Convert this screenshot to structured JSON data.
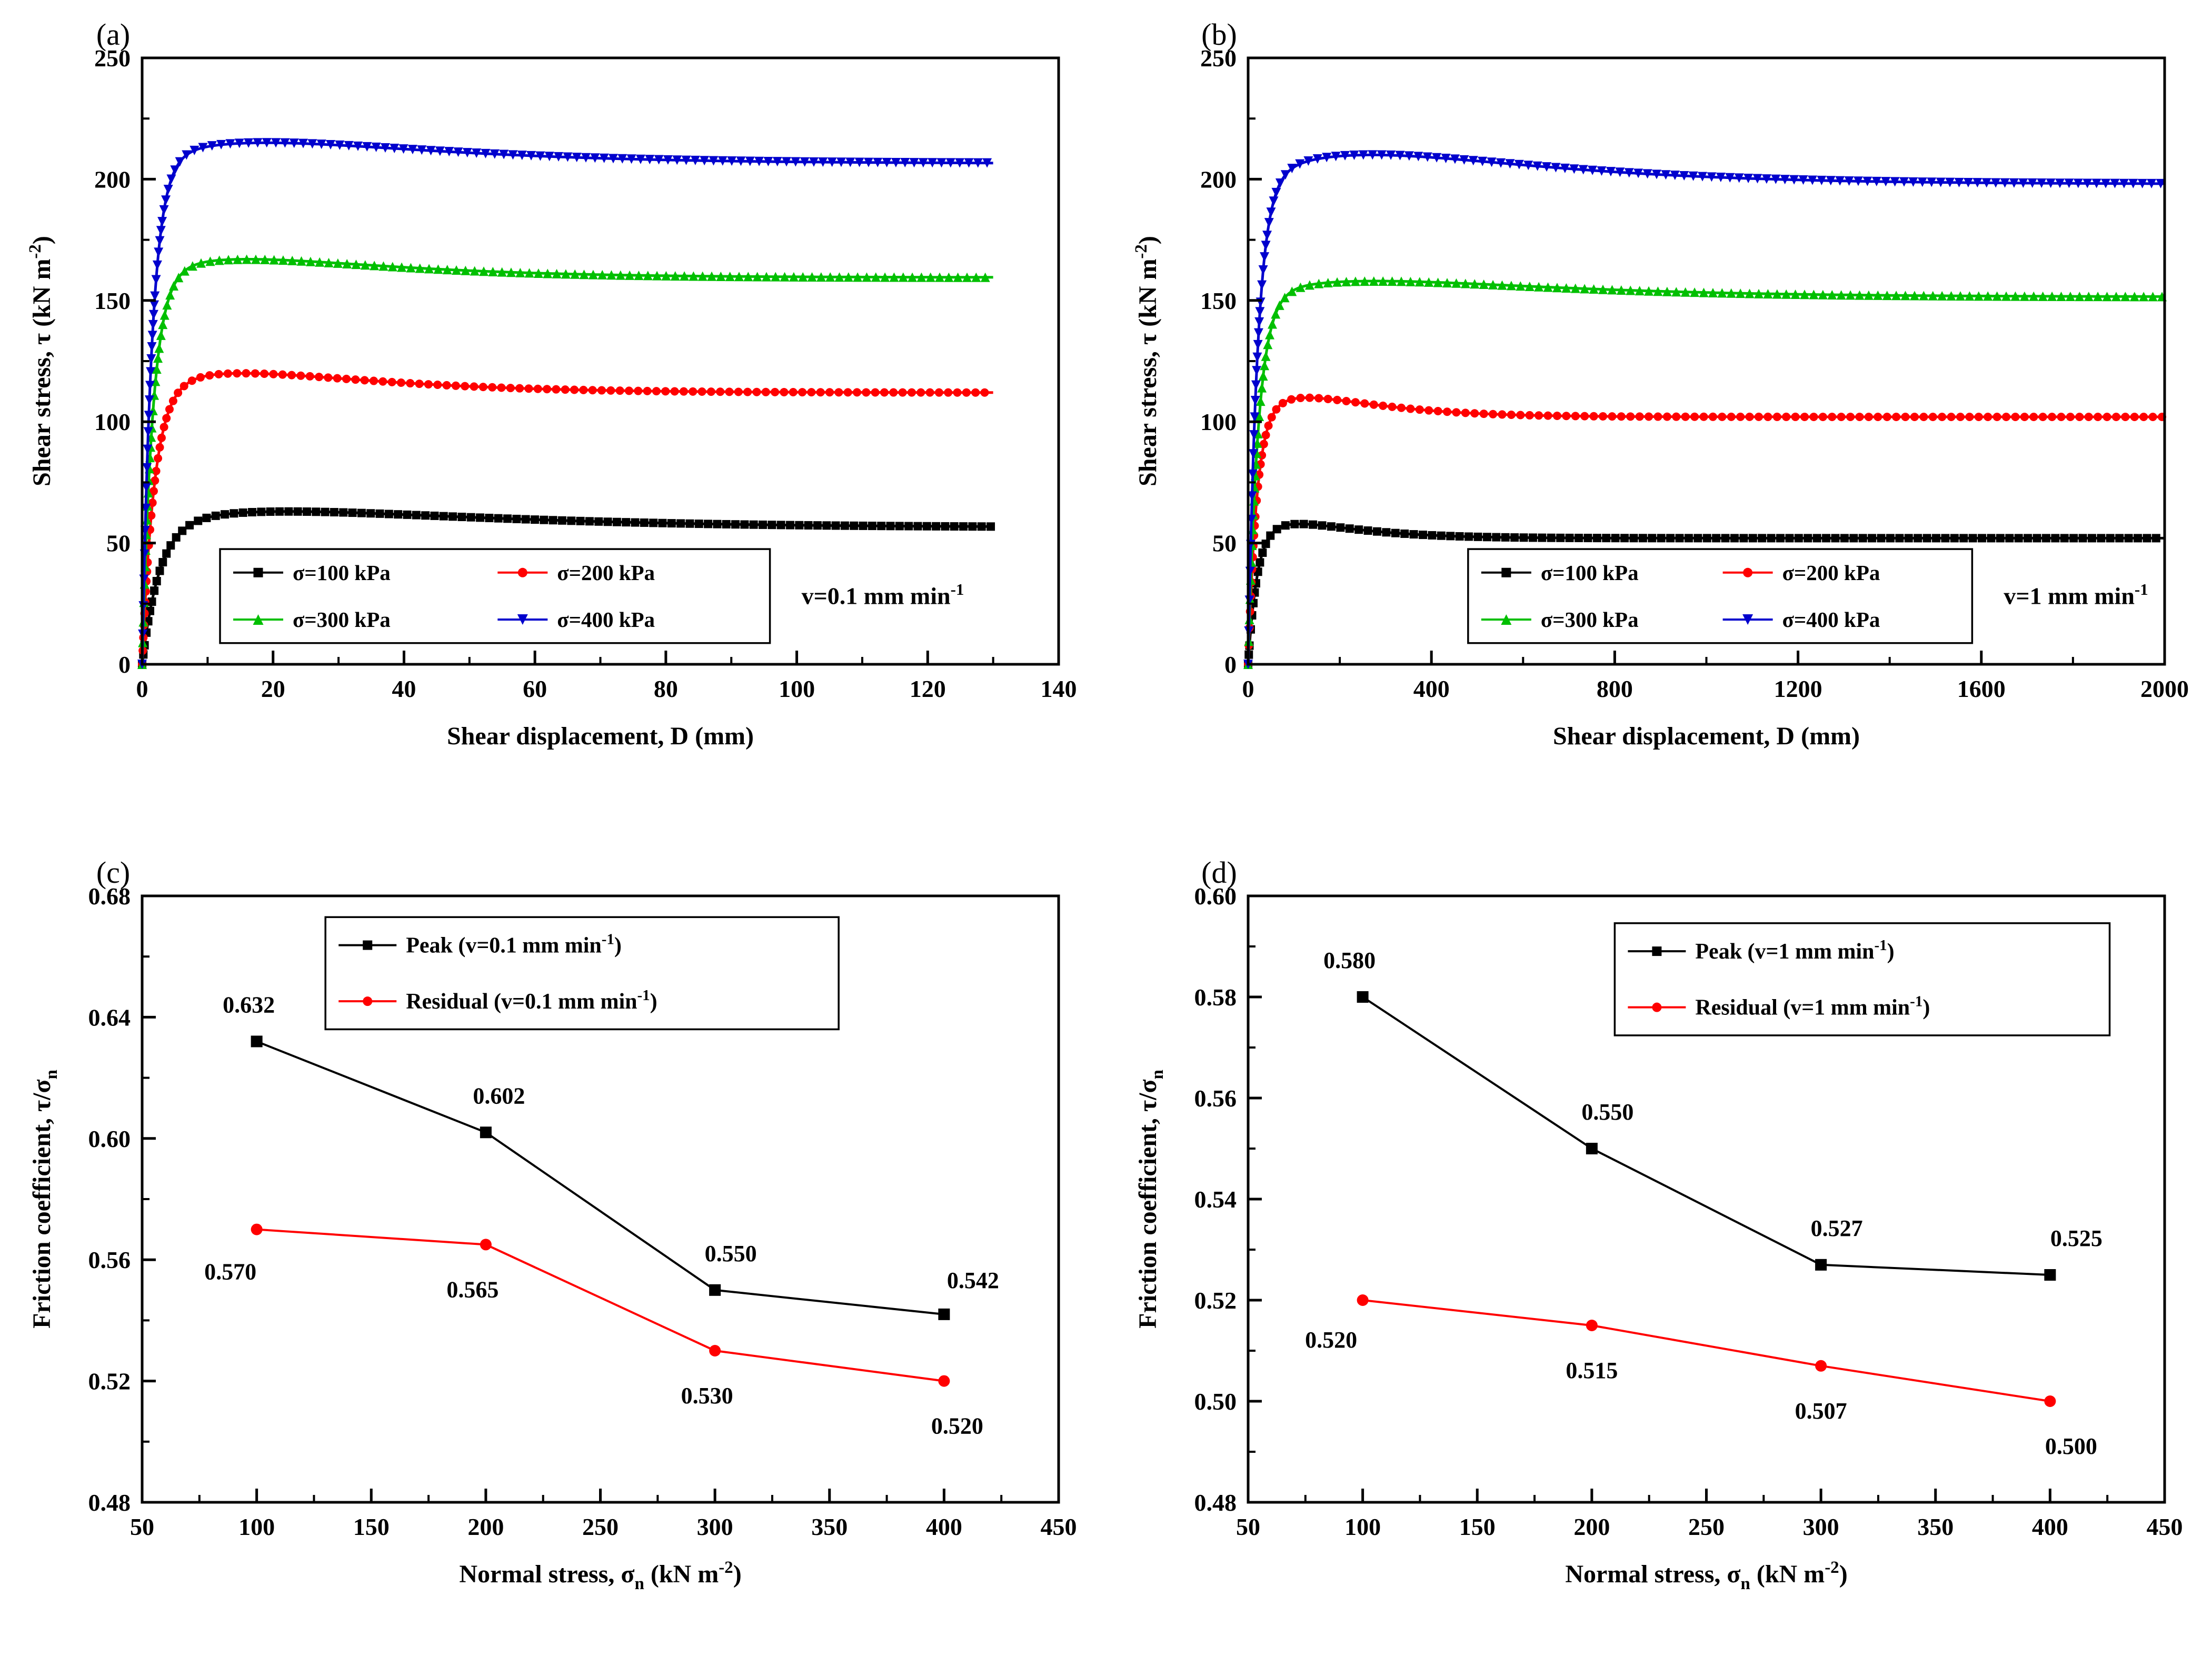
{
  "figure": {
    "background": "#ffffff"
  },
  "colors": {
    "black": "#000000",
    "red": "#ff0000",
    "green": "#00bf00",
    "blue": "#0000cd"
  },
  "chart_data": [
    {
      "id": "a",
      "type": "line",
      "panel_label": "(a)",
      "xlabel": [
        {
          "text": "Shear displacement, D (mm)"
        }
      ],
      "ylabel": [
        {
          "text": "Shear stress, τ (kN m"
        },
        {
          "text": "-2",
          "sup": true
        },
        {
          "text": ")"
        }
      ],
      "xlim": [
        0,
        140
      ],
      "xticks": [
        0,
        20,
        40,
        60,
        80,
        100,
        120,
        140
      ],
      "xtick_labels": [
        "0",
        "20",
        "40",
        "60",
        "80",
        "100",
        "120",
        "140"
      ],
      "x_minor_step": 10,
      "ylim": [
        0,
        250
      ],
      "yticks": [
        0,
        50,
        100,
        150,
        200,
        250
      ],
      "ytick_labels": [
        "0",
        "50",
        "100",
        "150",
        "200",
        "250"
      ],
      "y_minor_step": 25,
      "annotation": [
        {
          "text": "v=0.1 mm min"
        },
        {
          "text": "-1",
          "sup": true
        }
      ],
      "legend": {
        "fx": 0.085,
        "fy": 0.81,
        "fw": 0.6,
        "fh": 0.155,
        "cols": 2
      },
      "series": [
        {
          "name": [
            {
              "text": "σ=100 kPa"
            }
          ],
          "color": "#000000",
          "marker": "square",
          "curve": {
            "peak": 63,
            "xpeak": 22,
            "residual": 56.5,
            "xr": 2.5,
            "xend": 130
          }
        },
        {
          "name": [
            {
              "text": "σ=200 kPa"
            }
          ],
          "color": "#ff0000",
          "marker": "circle",
          "curve": {
            "peak": 120,
            "xpeak": 15,
            "residual": 112,
            "xr": 1.8,
            "xend": 130
          }
        },
        {
          "name": [
            {
              "text": "σ=300 kPa"
            }
          ],
          "color": "#00bf00",
          "marker": "triangle-up",
          "curve": {
            "peak": 167,
            "xpeak": 16,
            "residual": 159.5,
            "xr": 1.6,
            "xend": 130
          }
        },
        {
          "name": [
            {
              "text": "σ=400 kPa"
            }
          ],
          "color": "#0000cd",
          "marker": "triangle-down",
          "curve": {
            "peak": 215,
            "xpeak": 19,
            "residual": 206.5,
            "xr": 1.5,
            "xend": 130
          }
        }
      ]
    },
    {
      "id": "b",
      "type": "line",
      "panel_label": "(b)",
      "xlabel": [
        {
          "text": "Shear displacement, D (mm)"
        }
      ],
      "ylabel": [
        {
          "text": "Shear stress, τ (kN m"
        },
        {
          "text": "-2",
          "sup": true
        },
        {
          "text": ")"
        }
      ],
      "xlim": [
        0,
        2000
      ],
      "xticks": [
        0,
        400,
        800,
        1200,
        1600,
        2000
      ],
      "xtick_labels": [
        "0",
        "400",
        "800",
        "1200",
        "1600",
        "2000"
      ],
      "x_minor_step": 200,
      "ylim": [
        0,
        250
      ],
      "yticks": [
        0,
        50,
        100,
        150,
        200,
        250
      ],
      "ytick_labels": [
        "0",
        "50",
        "100",
        "150",
        "200",
        "250"
      ],
      "y_minor_step": 25,
      "annotation": [
        {
          "text": "v=1 mm min"
        },
        {
          "text": "-1",
          "sup": true
        }
      ],
      "legend": {
        "fx": 0.24,
        "fy": 0.81,
        "fw": 0.55,
        "fh": 0.155,
        "cols": 2
      },
      "series": [
        {
          "name": [
            {
              "text": "σ=100 kPa"
            }
          ],
          "color": "#000000",
          "marker": "square",
          "curve": {
            "peak": 58,
            "xpeak": 100,
            "residual": 52,
            "xr": 18,
            "xend": 2000
          }
        },
        {
          "name": [
            {
              "text": "σ=200 kPa"
            }
          ],
          "color": "#ff0000",
          "marker": "circle",
          "curve": {
            "peak": 110,
            "xpeak": 120,
            "residual": 102,
            "xr": 18,
            "xend": 2000
          }
        },
        {
          "name": [
            {
              "text": "σ=300 kPa"
            }
          ],
          "color": "#00bf00",
          "marker": "triangle-up",
          "curve": {
            "peak": 158,
            "xpeak": 280,
            "residual": 151.5,
            "xr": 22,
            "xend": 2000
          }
        },
        {
          "name": [
            {
              "text": "σ=400 kPa"
            }
          ],
          "color": "#0000cd",
          "marker": "triangle-down",
          "curve": {
            "peak": 210,
            "xpeak": 270,
            "residual": 198,
            "xr": 20,
            "xend": 2000
          }
        }
      ]
    },
    {
      "id": "c",
      "type": "scatter-line",
      "panel_label": "(c)",
      "xlabel": [
        {
          "text": "Normal stress, σ"
        },
        {
          "text": "n",
          "sub": true
        },
        {
          "text": " (kN m"
        },
        {
          "text": "-2",
          "sup": true
        },
        {
          "text": ")"
        }
      ],
      "ylabel": [
        {
          "text": "Friction coefficient, τ/σ"
        },
        {
          "text": "n",
          "sub": true
        }
      ],
      "xlim": [
        50,
        450
      ],
      "xticks": [
        50,
        100,
        150,
        200,
        250,
        300,
        350,
        400,
        450
      ],
      "xtick_labels": [
        "50",
        "100",
        "150",
        "200",
        "250",
        "300",
        "350",
        "400",
        "450"
      ],
      "x_minor_step": 25,
      "ylim": [
        0.48,
        0.68
      ],
      "yticks": [
        0.48,
        0.52,
        0.56,
        0.6,
        0.64,
        0.68
      ],
      "ytick_labels": [
        "0.48",
        "0.52",
        "0.56",
        "0.60",
        "0.64",
        "0.68"
      ],
      "y_minor_step": 0.02,
      "legend": {
        "fx": 0.2,
        "fy": 0.035,
        "fw": 0.56,
        "fh": 0.185,
        "cols": 1
      },
      "series": [
        {
          "name": [
            {
              "text": "Peak (v=0.1 mm min"
            },
            {
              "text": "-1",
              "sup": true
            },
            {
              "text": ")"
            }
          ],
          "color": "#000000",
          "marker": "square",
          "x": [
            100,
            200,
            300,
            400
          ],
          "y": [
            0.632,
            0.602,
            0.55,
            0.542
          ],
          "point_labels": [
            {
              "text": "0.632",
              "dx": -15,
              "dy": -55
            },
            {
              "text": "0.602",
              "dx": 25,
              "dy": -55
            },
            {
              "text": "0.550",
              "dx": 30,
              "dy": -55
            },
            {
              "text": "0.542",
              "dx": 55,
              "dy": -50
            }
          ]
        },
        {
          "name": [
            {
              "text": "Residual  (v=0.1 mm min"
            },
            {
              "text": "-1",
              "sup": true
            },
            {
              "text": ")"
            }
          ],
          "color": "#ff0000",
          "marker": "circle",
          "x": [
            100,
            200,
            300,
            400
          ],
          "y": [
            0.57,
            0.565,
            0.53,
            0.52
          ],
          "point_labels": [
            {
              "text": "0.570",
              "dx": -50,
              "dy": 95
            },
            {
              "text": "0.565",
              "dx": -25,
              "dy": 100
            },
            {
              "text": "0.530",
              "dx": -15,
              "dy": 100
            },
            {
              "text": "0.520",
              "dx": 25,
              "dy": 100
            }
          ]
        }
      ]
    },
    {
      "id": "d",
      "type": "scatter-line",
      "panel_label": "(d)",
      "xlabel": [
        {
          "text": "Normal stress, σ"
        },
        {
          "text": "n",
          "sub": true
        },
        {
          "text": " (kN m"
        },
        {
          "text": "-2",
          "sup": true
        },
        {
          "text": ")"
        }
      ],
      "ylabel": [
        {
          "text": "Friction coefficient, τ/σ"
        },
        {
          "text": "n",
          "sub": true
        }
      ],
      "xlim": [
        50,
        450
      ],
      "xticks": [
        50,
        100,
        150,
        200,
        250,
        300,
        350,
        400,
        450
      ],
      "xtick_labels": [
        "50",
        "100",
        "150",
        "200",
        "250",
        "300",
        "350",
        "400",
        "450"
      ],
      "x_minor_step": 25,
      "ylim": [
        0.48,
        0.6
      ],
      "yticks": [
        0.48,
        0.5,
        0.52,
        0.54,
        0.56,
        0.58,
        0.6
      ],
      "ytick_labels": [
        "0.48",
        "0.50",
        "0.52",
        "0.54",
        "0.56",
        "0.58",
        "0.60"
      ],
      "y_minor_step": 0.01,
      "legend": {
        "fx": 0.4,
        "fy": 0.045,
        "fw": 0.54,
        "fh": 0.185,
        "cols": 1
      },
      "series": [
        {
          "name": [
            {
              "text": "Peak (v=1 mm min"
            },
            {
              "text": "-1",
              "sup": true
            },
            {
              "text": ")"
            }
          ],
          "color": "#000000",
          "marker": "square",
          "x": [
            100,
            200,
            300,
            400
          ],
          "y": [
            0.58,
            0.55,
            0.527,
            0.525
          ],
          "point_labels": [
            {
              "text": "0.580",
              "dx": -25,
              "dy": -55
            },
            {
              "text": "0.550",
              "dx": 30,
              "dy": -55
            },
            {
              "text": "0.527",
              "dx": 30,
              "dy": -55
            },
            {
              "text": "0.525",
              "dx": 50,
              "dy": -55
            }
          ]
        },
        {
          "name": [
            {
              "text": "Residual (v=1 mm min"
            },
            {
              "text": "-1",
              "sup": true
            },
            {
              "text": ")"
            }
          ],
          "color": "#ff0000",
          "marker": "circle",
          "x": [
            100,
            200,
            300,
            400
          ],
          "y": [
            0.52,
            0.515,
            0.507,
            0.5
          ],
          "point_labels": [
            {
              "text": "0.520",
              "dx": -60,
              "dy": 90
            },
            {
              "text": "0.515",
              "dx": 0,
              "dy": 100
            },
            {
              "text": "0.507",
              "dx": 0,
              "dy": 100
            },
            {
              "text": "0.500",
              "dx": 40,
              "dy": 100
            }
          ]
        }
      ]
    }
  ]
}
